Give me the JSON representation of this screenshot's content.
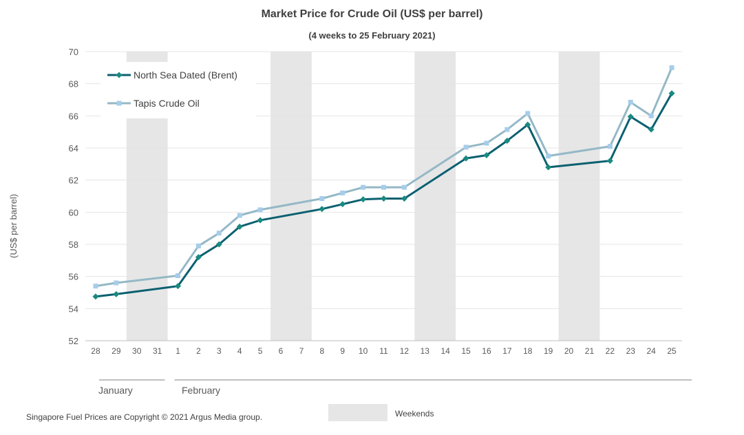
{
  "chart_data": {
    "type": "line",
    "title": "Market Price for Crude Oil (US$ per barrel)",
    "subtitle": "(4 weeks to 25 February 2021)",
    "ylabel": "(US$ per barrel)",
    "xlabel": "",
    "ylim": [
      52,
      70
    ],
    "yticks": [
      52,
      54,
      56,
      58,
      60,
      62,
      64,
      66,
      68,
      70
    ],
    "grid": true,
    "legend_position": "top-left",
    "categories": [
      "28",
      "29",
      "30",
      "31",
      "1",
      "2",
      "3",
      "4",
      "5",
      "6",
      "7",
      "8",
      "9",
      "10",
      "11",
      "12",
      "13",
      "14",
      "15",
      "16",
      "17",
      "18",
      "19",
      "20",
      "21",
      "22",
      "23",
      "24",
      "25"
    ],
    "weekend_bands": [
      [
        "30",
        "31"
      ],
      [
        "6",
        "7"
      ],
      [
        "13",
        "14"
      ],
      [
        "20",
        "21"
      ]
    ],
    "weekend_label": "Weekends",
    "months": [
      {
        "label": "January",
        "from": "28",
        "to": "31"
      },
      {
        "label": "February",
        "from": "1",
        "to": "25"
      }
    ],
    "series": [
      {
        "name": "North Sea Dated (Brent)",
        "color": "#0b6070",
        "marker": "diamond",
        "marker_color": "#1a8a80",
        "values": [
          54.75,
          54.9,
          null,
          null,
          55.4,
          57.2,
          58.0,
          59.1,
          59.5,
          null,
          null,
          60.2,
          60.5,
          60.8,
          60.85,
          60.85,
          null,
          null,
          63.35,
          63.55,
          64.45,
          65.45,
          62.8,
          null,
          null,
          63.2,
          65.95,
          65.15,
          67.4
        ]
      },
      {
        "name": "Tapis Crude Oil",
        "color": "#94b8c6",
        "marker": "square",
        "marker_color": "#a6cdea",
        "values": [
          55.4,
          55.6,
          null,
          null,
          56.05,
          57.9,
          58.7,
          59.8,
          60.15,
          null,
          null,
          60.85,
          61.2,
          61.55,
          61.55,
          61.55,
          null,
          null,
          64.05,
          64.3,
          65.15,
          66.15,
          63.5,
          null,
          null,
          64.1,
          66.85,
          66.0,
          69.0
        ]
      }
    ]
  },
  "footer": {
    "copyright": "Singapore Fuel Prices are Copyright © 2021 Argus Media group."
  }
}
